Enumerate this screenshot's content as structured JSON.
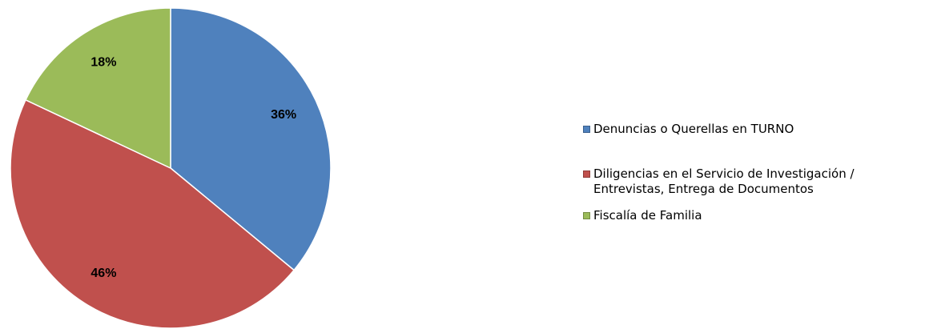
{
  "chart_data": {
    "type": "pie",
    "categories": [
      "Denuncias o Querellas en TURNO",
      "Diligencias en el Servicio de Investigación / Entrevistas, Entrega de Documentos",
      "Fiscalía de Familia"
    ],
    "values": [
      36,
      46,
      18
    ],
    "value_labels": [
      "36%",
      "46%",
      "18%"
    ],
    "colors": [
      "#4f81bd",
      "#c0504d",
      "#9bbb59"
    ],
    "legend": "right"
  }
}
